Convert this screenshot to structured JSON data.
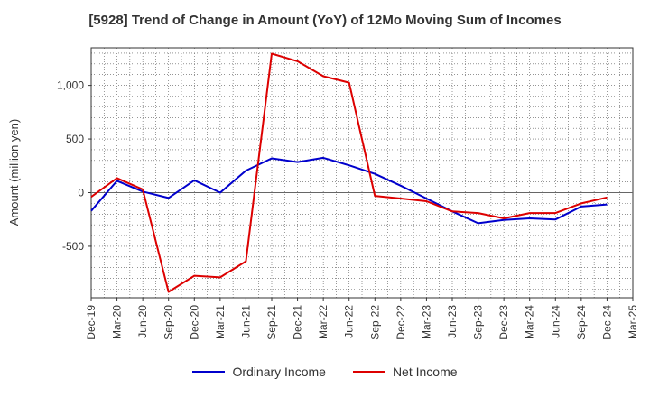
{
  "chart_data": {
    "type": "line",
    "title": "[5928]  Trend of Change in Amount (YoY) of 12Mo Moving Sum of Incomes",
    "xlabel": "",
    "ylabel": "Amount (million yen)",
    "ylim": [
      -980,
      1350
    ],
    "yticks": [
      -500,
      0,
      500,
      1000
    ],
    "ytick_labels": [
      "-500",
      "0",
      "500",
      "1,000"
    ],
    "categories": [
      "Dec-19",
      "Mar-20",
      "Jun-20",
      "Sep-20",
      "Dec-20",
      "Mar-21",
      "Jun-21",
      "Sep-21",
      "Dec-21",
      "Mar-22",
      "Jun-22",
      "Sep-22",
      "Dec-22",
      "Mar-23",
      "Jun-23",
      "Sep-23",
      "Dec-23",
      "Mar-24",
      "Jun-24",
      "Sep-24",
      "Dec-24",
      "Mar-25"
    ],
    "series": [
      {
        "name": "Ordinary Income",
        "color": "#0000cc",
        "values": [
          -170,
          110,
          10,
          -50,
          115,
          0,
          205,
          320,
          285,
          325,
          255,
          175,
          65,
          -55,
          -175,
          -285,
          -255,
          -240,
          -250,
          -130,
          -110,
          null
        ]
      },
      {
        "name": "Net Income",
        "color": "#dd0000",
        "values": [
          -40,
          135,
          30,
          -925,
          -775,
          -790,
          -640,
          1295,
          1225,
          1085,
          1025,
          -30,
          -55,
          -80,
          -175,
          -190,
          -240,
          -190,
          -190,
          -100,
          -45,
          null
        ]
      }
    ],
    "grid": true,
    "legend_position": "bottom"
  }
}
